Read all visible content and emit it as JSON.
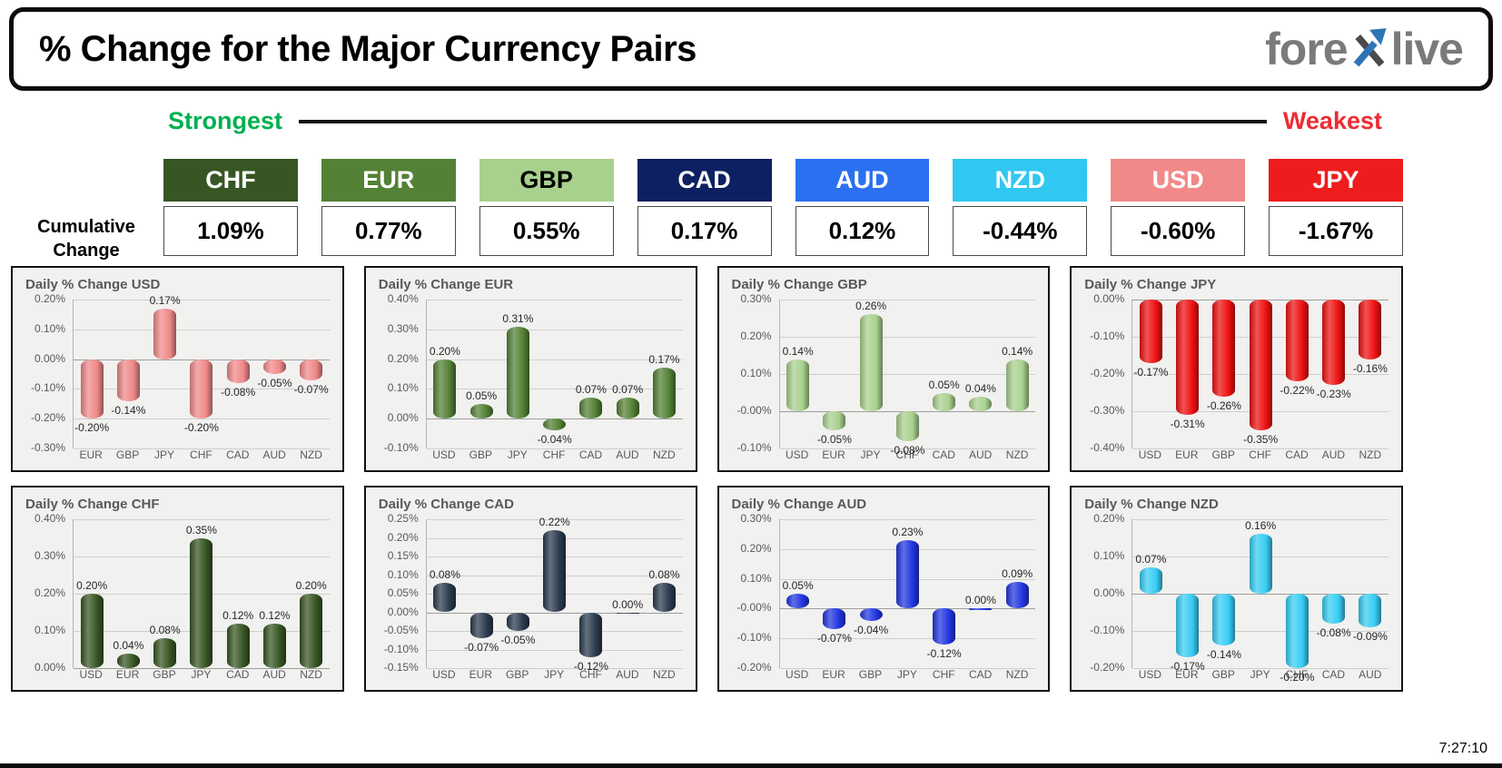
{
  "header": {
    "title": "% Change for the Major Currency Pairs",
    "logo_text_1": "fore",
    "logo_text_2": "live"
  },
  "scale_bar": {
    "strongest_label": "Strongest",
    "weakest_label": "Weakest",
    "strongest_color": "#00b050",
    "weakest_color": "#ee2b33"
  },
  "cumulative": {
    "label_line1": "Cumulative",
    "label_line2": "Change",
    "items": [
      {
        "code": "CHF",
        "value": "1.09%",
        "bg": "#375623",
        "fg": "#ffffff"
      },
      {
        "code": "EUR",
        "value": "0.77%",
        "bg": "#538135",
        "fg": "#ffffff"
      },
      {
        "code": "GBP",
        "value": "0.55%",
        "bg": "#a9d18e",
        "fg": "#000000"
      },
      {
        "code": "CAD",
        "value": "0.17%",
        "bg": "#0c2062",
        "fg": "#ffffff"
      },
      {
        "code": "AUD",
        "value": "0.12%",
        "bg": "#2a70f0",
        "fg": "#ffffff"
      },
      {
        "code": "NZD",
        "value": "-0.44%",
        "bg": "#31c7f0",
        "fg": "#ffffff"
      },
      {
        "code": "USD",
        "value": "-0.60%",
        "bg": "#f28989",
        "fg": "#ffffff"
      },
      {
        "code": "JPY",
        "value": "-1.67%",
        "bg": "#ee1c1c",
        "fg": "#ffffff"
      }
    ]
  },
  "chart_data": [
    {
      "type": "bar",
      "title": "Daily % Change USD",
      "categories": [
        "EUR",
        "GBP",
        "JPY",
        "CHF",
        "CAD",
        "AUD",
        "NZD"
      ],
      "values": [
        -0.2,
        -0.14,
        0.17,
        -0.2,
        -0.08,
        -0.05,
        -0.07
      ],
      "labels": [
        "-0.20%",
        "-0.14%",
        "0.17%",
        "-0.20%",
        "-0.08%",
        "-0.05%",
        "-0.07%"
      ],
      "ylim": [
        -0.3,
        0.2
      ],
      "ytick": 0.1,
      "bar_color": "#f08989"
    },
    {
      "type": "bar",
      "title": "Daily % Change EUR",
      "categories": [
        "USD",
        "GBP",
        "JPY",
        "CHF",
        "CAD",
        "AUD",
        "NZD"
      ],
      "values": [
        0.2,
        0.05,
        0.31,
        -0.04,
        0.07,
        0.07,
        0.17
      ],
      "labels": [
        "0.20%",
        "0.05%",
        "0.31%",
        "-0.04%",
        "0.07%",
        "0.07%",
        "0.17%"
      ],
      "ylim": [
        -0.1,
        0.4
      ],
      "ytick": 0.1,
      "bar_color": "#538135"
    },
    {
      "type": "bar",
      "title": "Daily % Change GBP",
      "categories": [
        "USD",
        "EUR",
        "JPY",
        "CHF",
        "CAD",
        "AUD",
        "NZD"
      ],
      "values": [
        0.14,
        -0.05,
        0.26,
        -0.08,
        0.05,
        0.04,
        0.14
      ],
      "labels": [
        "0.14%",
        "-0.05%",
        "0.26%",
        "-0.08%",
        "0.05%",
        "0.04%",
        "0.14%"
      ],
      "ylim": [
        -0.1,
        0.3
      ],
      "ytick": 0.1,
      "bar_color": "#a9d18e"
    },
    {
      "type": "bar",
      "title": "Daily % Change JPY",
      "categories": [
        "USD",
        "EUR",
        "GBP",
        "CHF",
        "CAD",
        "AUD",
        "NZD"
      ],
      "values": [
        -0.17,
        -0.31,
        -0.26,
        -0.35,
        -0.22,
        -0.23,
        -0.16
      ],
      "labels": [
        "-0.17%",
        "-0.31%",
        "-0.26%",
        "-0.35%",
        "-0.22%",
        "-0.23%",
        "-0.16%"
      ],
      "ylim": [
        -0.4,
        0.0
      ],
      "ytick": 0.1,
      "bar_color": "#ee1111"
    },
    {
      "type": "bar",
      "title": "Daily % Change CHF",
      "categories": [
        "USD",
        "EUR",
        "GBP",
        "JPY",
        "CAD",
        "AUD",
        "NZD"
      ],
      "values": [
        0.2,
        0.04,
        0.08,
        0.35,
        0.12,
        0.12,
        0.2
      ],
      "labels": [
        "0.20%",
        "0.04%",
        "0.08%",
        "0.35%",
        "0.12%",
        "0.12%",
        "0.20%"
      ],
      "ylim": [
        0.0,
        0.4
      ],
      "ytick": 0.1,
      "bar_color": "#375623"
    },
    {
      "type": "bar",
      "title": "Daily % Change CAD",
      "categories": [
        "USD",
        "EUR",
        "GBP",
        "JPY",
        "CHF",
        "AUD",
        "NZD"
      ],
      "values": [
        0.08,
        -0.07,
        -0.05,
        0.22,
        -0.12,
        0.0,
        0.08
      ],
      "labels": [
        "0.08%",
        "-0.07%",
        "-0.05%",
        "0.22%",
        "-0.12%",
        "0.00%",
        "0.08%"
      ],
      "ylim": [
        -0.15,
        0.25
      ],
      "ytick": 0.05,
      "bar_color": "#2b3b4e"
    },
    {
      "type": "bar",
      "title": "Daily % Change AUD",
      "categories": [
        "USD",
        "EUR",
        "GBP",
        "JPY",
        "CHF",
        "CAD",
        "NZD"
      ],
      "values": [
        0.05,
        -0.07,
        -0.04,
        0.23,
        -0.12,
        0.0,
        0.09
      ],
      "labels": [
        "0.05%",
        "-0.07%",
        "-0.04%",
        "0.23%",
        "-0.12%",
        "0.00%",
        "0.09%"
      ],
      "ylim": [
        -0.2,
        0.3
      ],
      "ytick": 0.1,
      "bar_color": "#2236e0"
    },
    {
      "type": "bar",
      "title": "Daily % Change NZD",
      "categories": [
        "USD",
        "EUR",
        "GBP",
        "JPY",
        "CHF",
        "CAD",
        "AUD"
      ],
      "values": [
        0.07,
        -0.17,
        -0.14,
        0.16,
        -0.2,
        -0.08,
        -0.09
      ],
      "labels": [
        "0.07%",
        "-0.17%",
        "-0.14%",
        "0.16%",
        "-0.20%",
        "-0.08%",
        "-0.09%"
      ],
      "ylim": [
        -0.2,
        0.2
      ],
      "ytick": 0.1,
      "bar_color": "#38cdf4"
    }
  ],
  "footer": {
    "timestamp": "7:27:10"
  }
}
